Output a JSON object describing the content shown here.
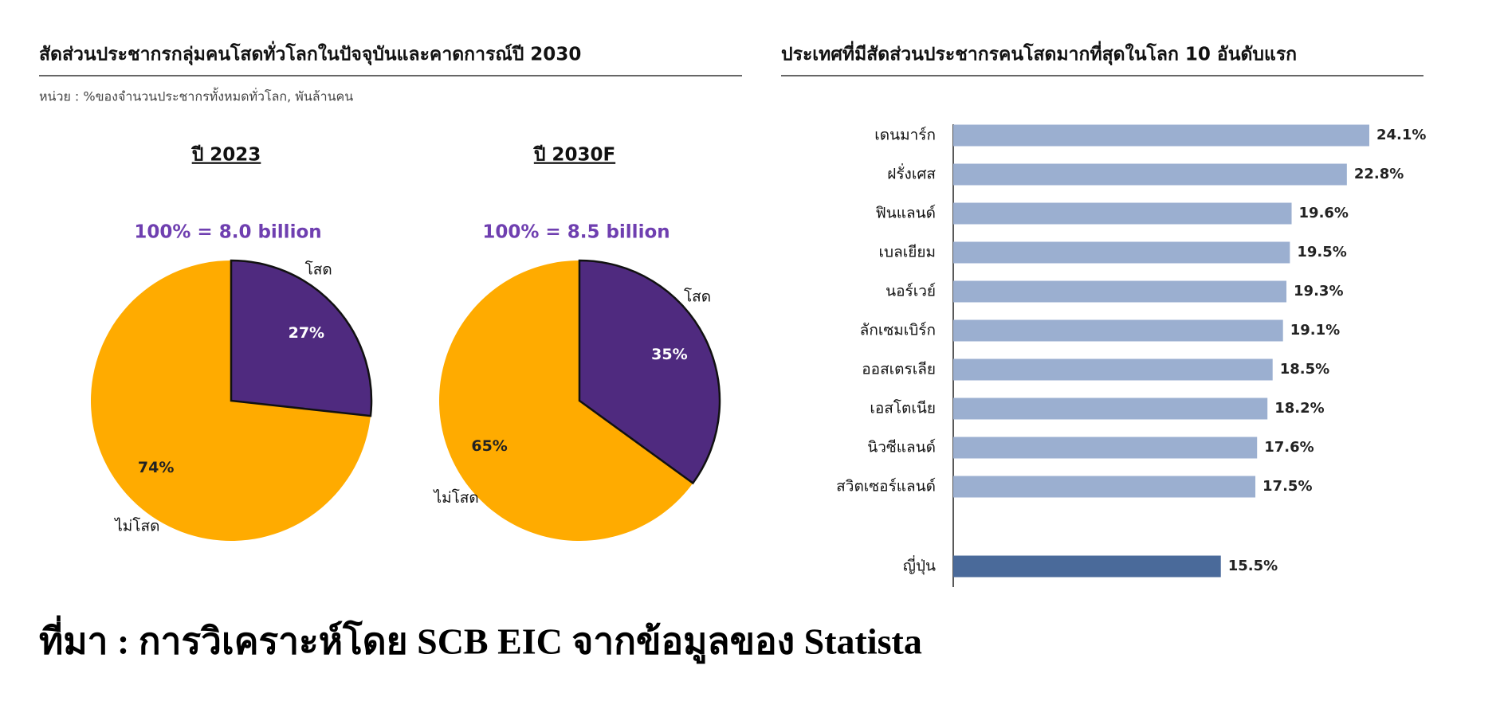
{
  "left_panel": {
    "title": "สัดส่วนประชากรกลุ่มคนโสดทั่วโลกในปัจจุบันและคาดการณ์ปี 2030",
    "note": "หน่วย : %ของจำนวนประชากรทั้งหมดทั่วโลก, พันล้านคน"
  },
  "chart_data": [
    {
      "type": "pie",
      "title": "ปี 2023",
      "subtitle": "100% = 8.0 billion",
      "categories": [
        "โสด",
        "ไม่โสด"
      ],
      "values": [
        27,
        74
      ],
      "value_labels": [
        "27%",
        "74%"
      ],
      "colors": [
        "#4f2a7f",
        "#ffab00"
      ]
    },
    {
      "type": "pie",
      "title": "ปี 2030F",
      "subtitle": "100% = 8.5 billion",
      "categories": [
        "โสด",
        "ไม่โสด"
      ],
      "values": [
        35,
        65
      ],
      "value_labels": [
        "35%",
        "65%"
      ],
      "colors": [
        "#4f2a7f",
        "#ffab00"
      ]
    },
    {
      "type": "hbar",
      "title": "ประเทศที่มีสัดส่วนประชากรคนโสดมากที่สุดในโลก 10 อันดับแรก",
      "categories": [
        "เดนมาร์ก",
        "ฝรั่งเศส",
        "ฟินแลนด์",
        "เบลเยียม",
        "นอร์เวย์",
        "ลักเซมเบิร์ก",
        "ออสเตรเลีย",
        "เอสโตเนีย",
        "นิวซีแลนด์",
        "สวิตเซอร์แลนด์",
        "ญี่ปุ่น"
      ],
      "values": [
        24.1,
        22.8,
        19.6,
        19.5,
        19.3,
        19.1,
        18.5,
        18.2,
        17.6,
        17.5,
        15.5
      ],
      "value_labels": [
        "24.1%",
        "22.8%",
        "19.6%",
        "19.5%",
        "19.3%",
        "19.1%",
        "18.5%",
        "18.2%",
        "17.6%",
        "17.5%",
        "15.5%"
      ],
      "colors": [
        "#9bafd0",
        "#9bafd0",
        "#9bafd0",
        "#9bafd0",
        "#9bafd0",
        "#9bafd0",
        "#9bafd0",
        "#9bafd0",
        "#9bafd0",
        "#9bafd0",
        "#4a6a9a"
      ]
    }
  ],
  "source": "ที่มา : การวิเคราะห์โดย SCB EIC จากข้อมูลของ Statista"
}
